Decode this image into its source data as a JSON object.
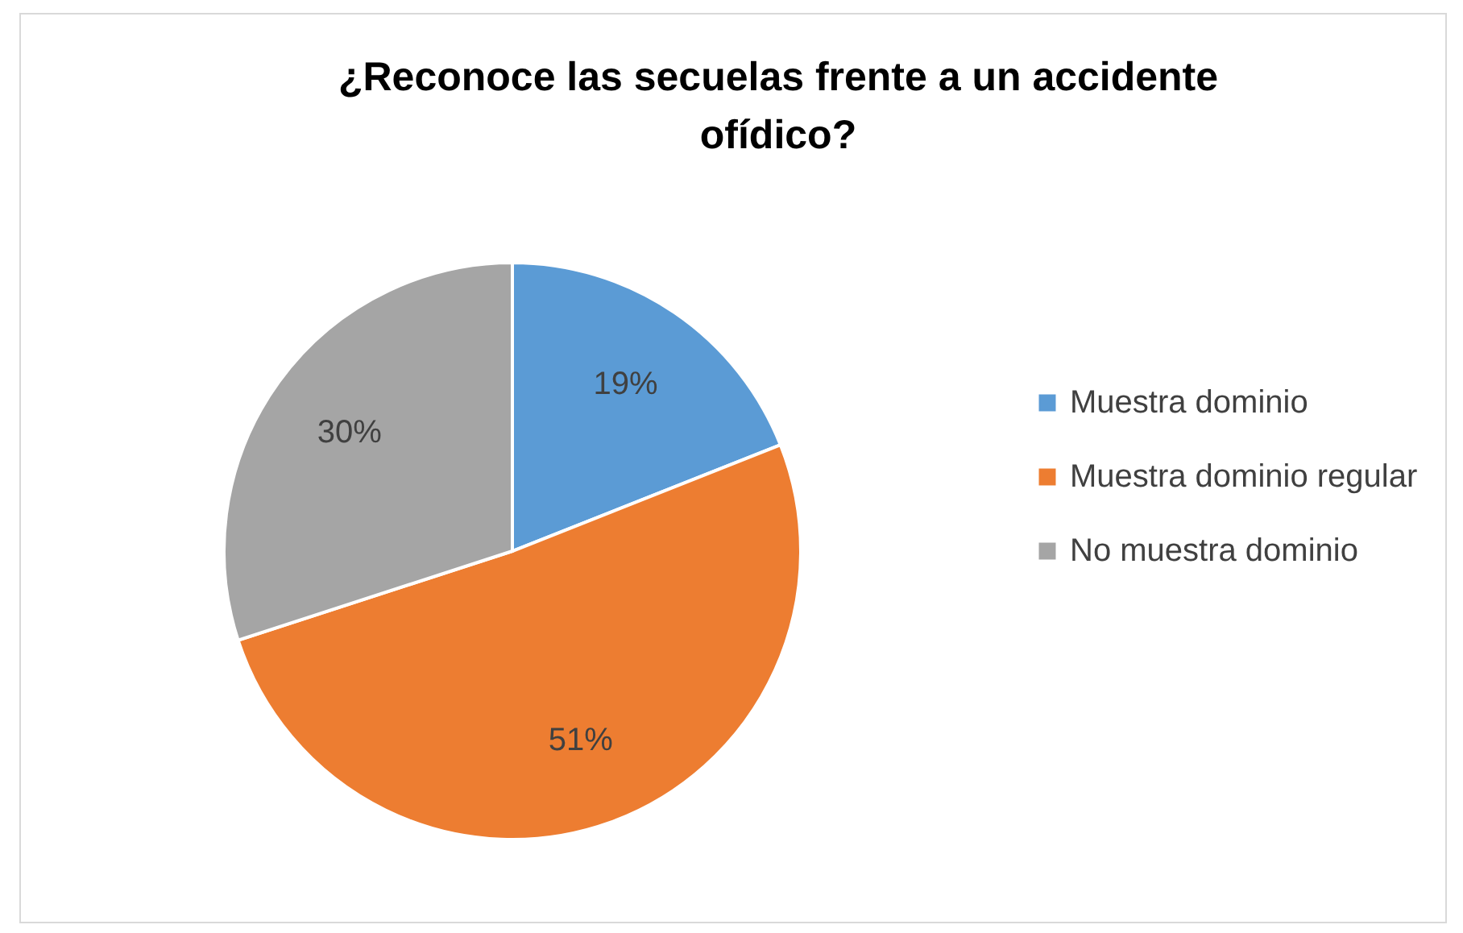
{
  "chart_data": {
    "type": "pie",
    "title": "¿Reconoce las secuelas frente a un accidente ofídico?",
    "categories": [
      "Muestra dominio",
      "Muestra dominio regular",
      "No muestra dominio"
    ],
    "values": [
      19,
      51,
      30
    ],
    "colors": [
      "#5b9bd5",
      "#ed7d31",
      "#a5a5a5"
    ],
    "value_labels": [
      "19%",
      "51%",
      "30%"
    ],
    "legend": "right"
  }
}
